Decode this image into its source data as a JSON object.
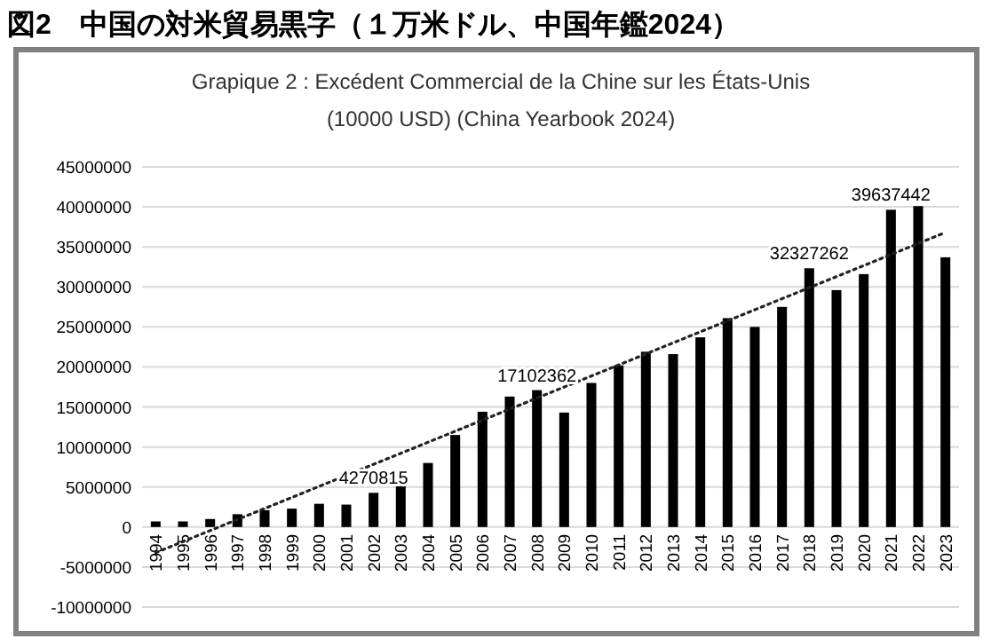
{
  "chart_data": {
    "type": "bar",
    "title": "図2　中国の対米貿易黒字（１万米ドル、中国年鑑2024）",
    "subtitle": "Grapique 2 : Excédent Commercial de la Chine sur les États-Unis\n(10000 USD) (China Yearbook 2024)",
    "categories": [
      "1994",
      "1995",
      "1996",
      "1997",
      "1998",
      "1999",
      "2000",
      "2001",
      "2002",
      "2003",
      "2004",
      "2005",
      "2006",
      "2007",
      "2008",
      "2009",
      "2010",
      "2011",
      "2012",
      "2013",
      "2014",
      "2015",
      "2016",
      "2017",
      "2018",
      "2019",
      "2020",
      "2021",
      "2022",
      "2023"
    ],
    "series": [
      {
        "color": "#000000",
        "values": [
          700000,
          700000,
          1000000,
          1600000,
          2100000,
          2300000,
          2900000,
          2800000,
          4270815,
          5800000,
          8000000,
          11500000,
          14400000,
          16300000,
          17102362,
          14300000,
          18000000,
          20200000,
          21900000,
          21600000,
          23700000,
          26100000,
          25000000,
          27500000,
          32327262,
          29600000,
          31600000,
          39637442,
          40100000,
          33700000
        ],
        "value_labels": [
          null,
          null,
          null,
          null,
          null,
          null,
          null,
          null,
          "4270815",
          null,
          null,
          null,
          null,
          null,
          "17102362",
          null,
          null,
          null,
          null,
          null,
          null,
          null,
          null,
          null,
          "32327262",
          null,
          null,
          "39637442",
          null,
          null
        ]
      },
      {
        "type": "line",
        "color": "#222222",
        "line_style": "dotted",
        "values": [
          -3200000,
          null,
          null,
          null,
          null,
          null,
          null,
          null,
          null,
          null,
          null,
          null,
          null,
          null,
          null,
          null,
          null,
          null,
          null,
          null,
          null,
          null,
          null,
          null,
          null,
          null,
          null,
          null,
          null,
          36800000
        ]
      }
    ],
    "ylim": [
      -10000000,
      45000000
    ],
    "yticks": [
      -10000000,
      -5000000,
      0,
      5000000,
      10000000,
      15000000,
      20000000,
      25000000,
      30000000,
      35000000,
      40000000,
      45000000
    ],
    "grid": "y"
  }
}
